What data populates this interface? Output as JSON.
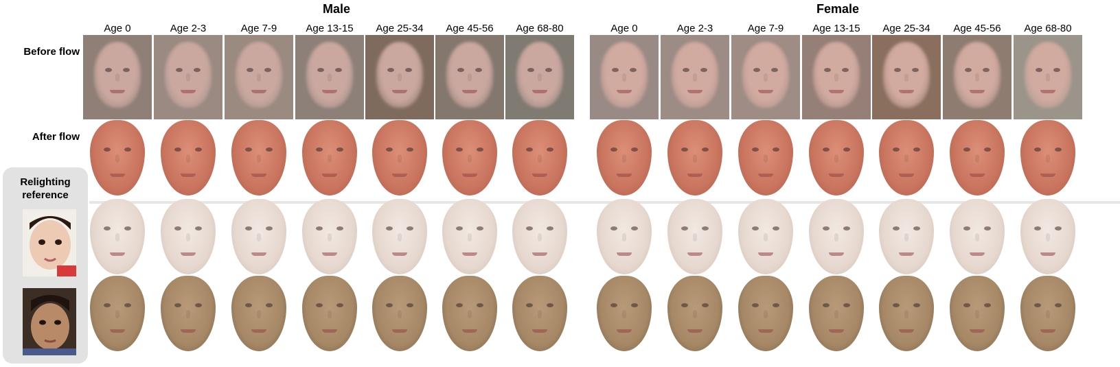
{
  "groups": [
    {
      "title": "Male"
    },
    {
      "title": "Female"
    }
  ],
  "columns": {
    "male": [
      "Age 0",
      "Age 2-3",
      "Age 7-9",
      "Age 13-15",
      "Age 25-34",
      "Age 45-56",
      "Age 68-80"
    ],
    "female": [
      "Age 0",
      "Age 2-3",
      "Age 7-9",
      "Age 13-15",
      "Age 25-34",
      "Age 45-56",
      "Age 68-80"
    ]
  },
  "rows": {
    "before_flow": "Before flow",
    "after_flow": "After flow"
  },
  "relighting": {
    "title_line1": "Relighting",
    "title_line2": "reference"
  },
  "colors": {
    "before_bg": [
      "#8f7f76",
      "#9a8a82",
      "#9b8a80",
      "#8d8078",
      "#7f6b5d",
      "#84786e",
      "#7f7a72"
    ],
    "before_bg_f": [
      "#9a8a85",
      "#9d8b85",
      "#9e8c85",
      "#957f77",
      "#8a6f5e",
      "#8e7c70",
      "#9b948a"
    ],
    "after_skin": "#c9745e",
    "relight1_skin": "#e6d8cf",
    "relight2_skin": "#a68866"
  }
}
